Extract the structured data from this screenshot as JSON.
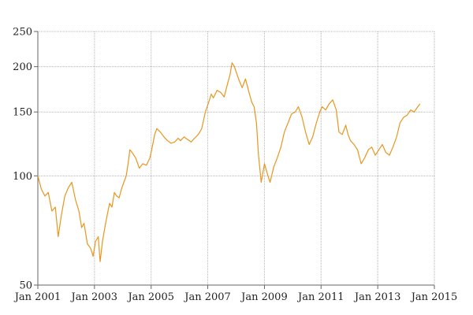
{
  "chart_data": {
    "type": "line",
    "title": "",
    "xlabel": "",
    "ylabel": "",
    "y_scale": "log",
    "grid": true,
    "legend": "none",
    "xlim": [
      "2001-01-01",
      "2015-01-01"
    ],
    "ylim": [
      50,
      250
    ],
    "x_ticks": [
      {
        "date": "2001-01-01",
        "label": "Jan 2001"
      },
      {
        "date": "2003-01-01",
        "label": "Jan 2003"
      },
      {
        "date": "2005-01-01",
        "label": "Jan 2005"
      },
      {
        "date": "2007-01-01",
        "label": "Jan 2007"
      },
      {
        "date": "2009-01-01",
        "label": "Jan 2009"
      },
      {
        "date": "2011-01-01",
        "label": "Jan 2011"
      },
      {
        "date": "2013-01-01",
        "label": "Jan 2013"
      },
      {
        "date": "2015-01-01",
        "label": "Jan 2015"
      }
    ],
    "y_ticks": [
      {
        "value": 50,
        "label": "50"
      },
      {
        "value": 100,
        "label": "100"
      },
      {
        "value": 150,
        "label": "150"
      },
      {
        "value": 200,
        "label": "200"
      },
      {
        "value": 250,
        "label": "250"
      }
    ],
    "series": [
      {
        "color": "#e8961e",
        "points": [
          [
            "2001-01-01",
            100
          ],
          [
            "2001-02-15",
            92
          ],
          [
            "2001-04-01",
            88
          ],
          [
            "2001-05-15",
            90
          ],
          [
            "2001-07-01",
            80
          ],
          [
            "2001-08-15",
            82
          ],
          [
            "2001-09-20",
            68
          ],
          [
            "2001-11-01",
            78
          ],
          [
            "2001-12-15",
            88
          ],
          [
            "2002-02-01",
            93
          ],
          [
            "2002-03-15",
            96
          ],
          [
            "2002-05-01",
            86
          ],
          [
            "2002-06-15",
            80
          ],
          [
            "2002-07-20",
            72
          ],
          [
            "2002-08-20",
            74
          ],
          [
            "2002-10-01",
            65
          ],
          [
            "2002-11-15",
            63
          ],
          [
            "2002-12-15",
            60
          ],
          [
            "2003-01-15",
            66
          ],
          [
            "2003-02-20",
            68
          ],
          [
            "2003-03-15",
            58
          ],
          [
            "2003-04-15",
            66
          ],
          [
            "2003-05-15",
            72
          ],
          [
            "2003-06-15",
            78
          ],
          [
            "2003-07-15",
            84
          ],
          [
            "2003-08-15",
            82
          ],
          [
            "2003-09-15",
            90
          ],
          [
            "2003-10-15",
            88
          ],
          [
            "2003-11-15",
            87
          ],
          [
            "2003-12-15",
            92
          ],
          [
            "2004-01-15",
            96
          ],
          [
            "2004-02-15",
            100
          ],
          [
            "2004-03-15",
            110
          ],
          [
            "2004-04-01",
            118
          ],
          [
            "2004-05-01",
            116
          ],
          [
            "2004-06-15",
            112
          ],
          [
            "2004-08-01",
            105
          ],
          [
            "2004-09-15",
            108
          ],
          [
            "2004-11-01",
            107
          ],
          [
            "2004-12-15",
            112
          ],
          [
            "2005-01-15",
            120
          ],
          [
            "2005-02-15",
            130
          ],
          [
            "2005-03-15",
            135
          ],
          [
            "2005-05-01",
            132
          ],
          [
            "2005-06-15",
            128
          ],
          [
            "2005-08-01",
            125
          ],
          [
            "2005-09-15",
            123
          ],
          [
            "2005-11-01",
            124
          ],
          [
            "2005-12-15",
            127
          ],
          [
            "2006-01-15",
            125
          ],
          [
            "2006-03-01",
            128
          ],
          [
            "2006-04-15",
            126
          ],
          [
            "2006-06-01",
            124
          ],
          [
            "2006-07-15",
            127
          ],
          [
            "2006-09-01",
            130
          ],
          [
            "2006-10-15",
            135
          ],
          [
            "2006-12-01",
            150
          ],
          [
            "2007-01-15",
            160
          ],
          [
            "2007-02-15",
            168
          ],
          [
            "2007-03-15",
            164
          ],
          [
            "2007-05-01",
            172
          ],
          [
            "2007-06-15",
            170
          ],
          [
            "2007-08-01",
            165
          ],
          [
            "2007-09-15",
            180
          ],
          [
            "2007-10-15",
            190
          ],
          [
            "2007-11-10",
            205
          ],
          [
            "2007-12-10",
            200
          ],
          [
            "2008-01-15",
            190
          ],
          [
            "2008-02-15",
            182
          ],
          [
            "2008-03-20",
            175
          ],
          [
            "2008-05-01",
            185
          ],
          [
            "2008-06-15",
            170
          ],
          [
            "2008-07-20",
            160
          ],
          [
            "2008-08-20",
            155
          ],
          [
            "2008-09-20",
            140
          ],
          [
            "2008-10-15",
            115
          ],
          [
            "2008-11-20",
            96
          ],
          [
            "2009-01-01",
            108
          ],
          [
            "2009-02-15",
            100
          ],
          [
            "2009-03-15",
            96
          ],
          [
            "2009-05-01",
            106
          ],
          [
            "2009-06-15",
            112
          ],
          [
            "2009-08-01",
            120
          ],
          [
            "2009-09-15",
            132
          ],
          [
            "2009-11-01",
            140
          ],
          [
            "2009-12-15",
            148
          ],
          [
            "2010-02-01",
            150
          ],
          [
            "2010-03-15",
            155
          ],
          [
            "2010-05-01",
            145
          ],
          [
            "2010-06-15",
            132
          ],
          [
            "2010-08-01",
            122
          ],
          [
            "2010-09-15",
            128
          ],
          [
            "2010-11-01",
            140
          ],
          [
            "2010-12-15",
            150
          ],
          [
            "2011-01-15",
            155
          ],
          [
            "2011-03-01",
            152
          ],
          [
            "2011-04-15",
            158
          ],
          [
            "2011-06-01",
            162
          ],
          [
            "2011-07-15",
            152
          ],
          [
            "2011-08-20",
            132
          ],
          [
            "2011-10-01",
            130
          ],
          [
            "2011-11-15",
            138
          ],
          [
            "2011-12-15",
            130
          ],
          [
            "2012-01-15",
            125
          ],
          [
            "2012-03-01",
            122
          ],
          [
            "2012-04-15",
            118
          ],
          [
            "2012-06-01",
            108
          ],
          [
            "2012-07-15",
            112
          ],
          [
            "2012-09-01",
            118
          ],
          [
            "2012-10-15",
            120
          ],
          [
            "2012-12-01",
            114
          ],
          [
            "2013-01-15",
            118
          ],
          [
            "2013-03-01",
            122
          ],
          [
            "2013-04-15",
            116
          ],
          [
            "2013-06-01",
            114
          ],
          [
            "2013-07-15",
            120
          ],
          [
            "2013-09-01",
            128
          ],
          [
            "2013-10-15",
            140
          ],
          [
            "2013-12-01",
            145
          ],
          [
            "2014-01-15",
            147
          ],
          [
            "2014-03-01",
            152
          ],
          [
            "2014-04-15",
            150
          ],
          [
            "2014-06-01",
            155
          ],
          [
            "2014-07-01",
            158
          ]
        ]
      }
    ]
  }
}
